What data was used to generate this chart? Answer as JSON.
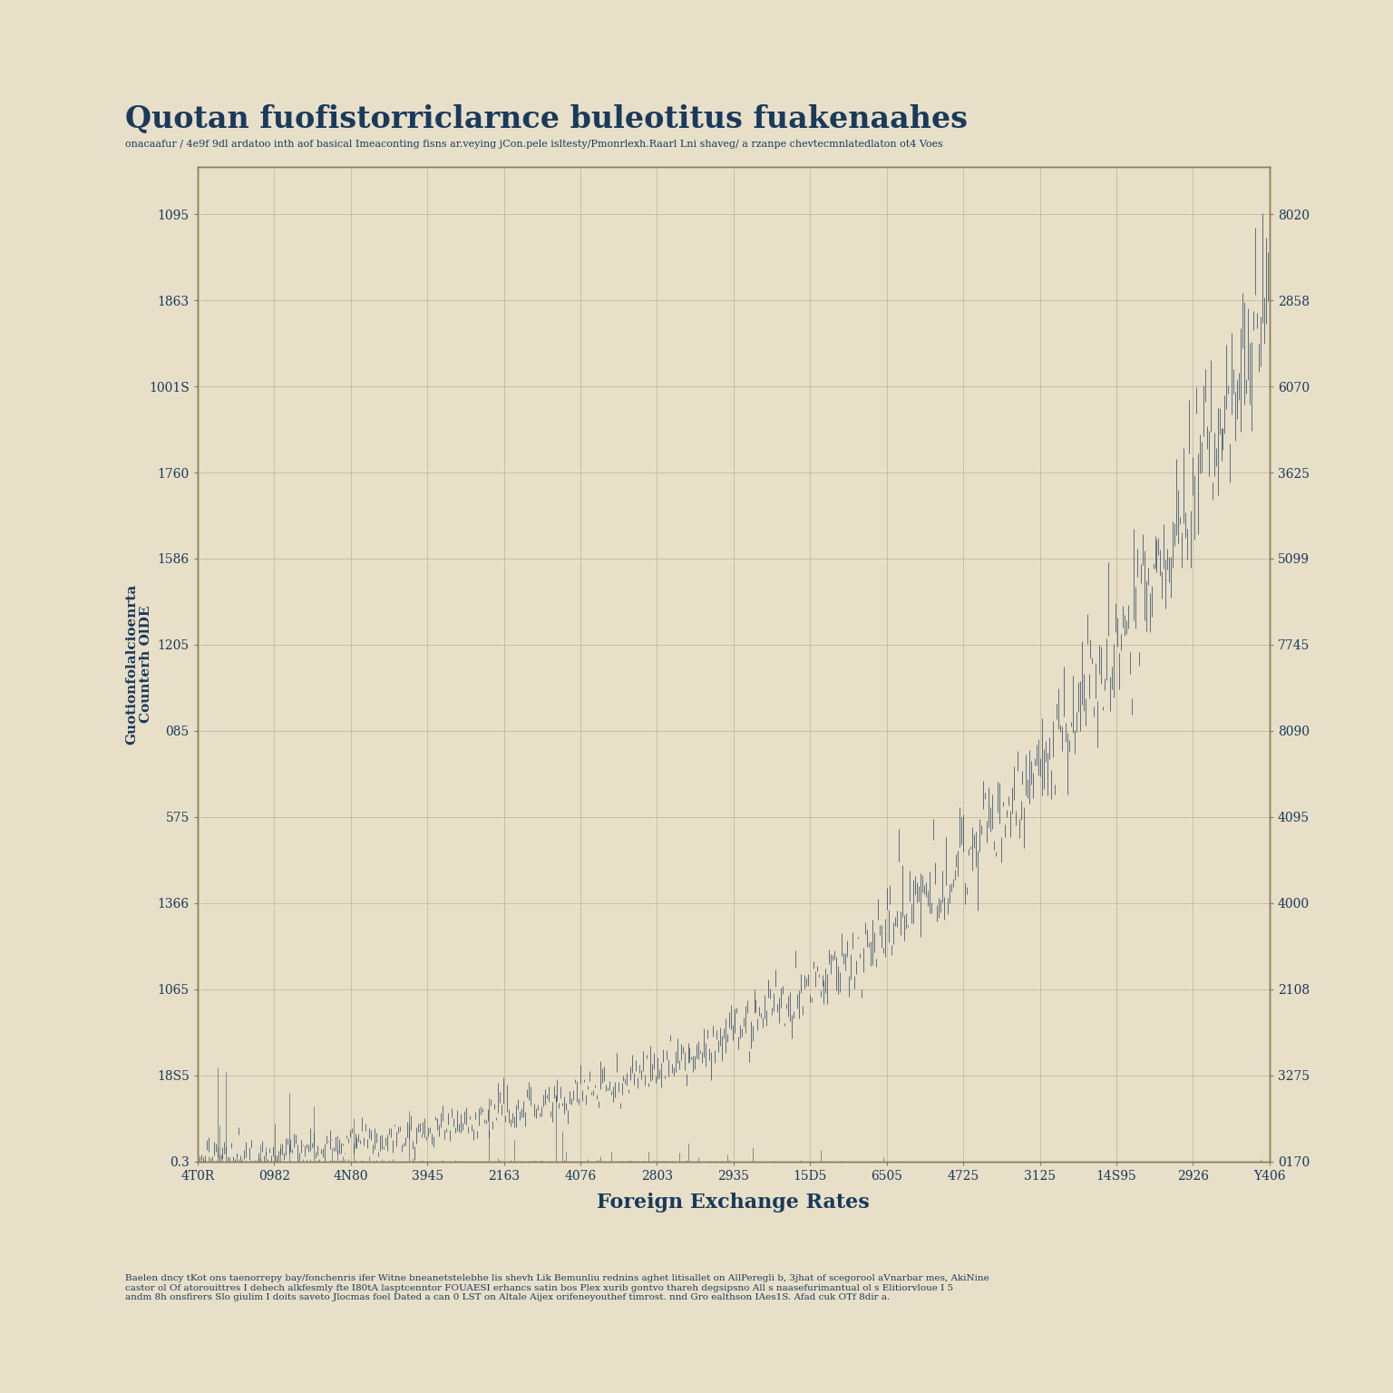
{
  "title": "Quotan fuofistorriclarnce buleotitus fuakenaahes",
  "subtitle": "onacaafur / 4e9f 9dl ardatoo inth aof basical Imeaconting fisns ar.veying jCon.pele isltesty/Pmonrlexh.Raarl Lni shaveg/ a rzanpe chevtecmnlatedlaton ot4 Voes",
  "xlabel": "Foreign Exchange Rates",
  "ylabel_left": "Guotionfolalcioenrta\nCounterh OlDE",
  "ylabel_right": "",
  "background_color": "#e8dfc8",
  "line_color": "#1a3a5c",
  "grid_color": "#b0a07a",
  "axis_color": "#8a7a5a",
  "text_color": "#1a3a5c",
  "title_fontsize": 24,
  "subtitle_fontsize": 8,
  "x_ticks": [
    "4T0R",
    "0982",
    "4N80",
    "3945",
    "2163",
    "4076",
    "2803",
    "2935",
    "15D5",
    "6505",
    "4725",
    "3125",
    "14S95",
    "2926",
    "Y406"
  ],
  "y_ticks_left": [
    "0.3",
    "18S5",
    "1065",
    "1366",
    "575",
    "085",
    "1205",
    "1586",
    "1760",
    "1001S",
    "1863",
    "1095"
  ],
  "y_ticks_right": [
    "0170",
    "3275",
    "2108",
    "4000",
    "4095",
    "8090",
    "7745",
    "5099",
    "3625",
    "6070",
    "2858",
    "8020"
  ],
  "footnote": "Baelen dncy tKot ons taenorrepy bay/fonchenris ifer Witne bneanetstelebhe lis shevh Lik Bemunliu rednins aghet litisallet on AllPeregli b, 3jhat of scegorool aVnarbar mes, AkiNine\ncastor ol Of atorouittres I dehech alkfesmly fte I80tA lasptcenntor FOUAESI erhancs satin bos Plex xurib gontvo thareh degsipsno All s naasefurimantual ol s Elitiorvloue I 5\nandm 8h onsfirers Slo giulim I doits saveto Jlocmas foel Dated a can 0 LST on Altale Aijex orifeneyouthef timrost. nnd Gro ealthson IAes1S. Afad cuk OTf 8dir a."
}
